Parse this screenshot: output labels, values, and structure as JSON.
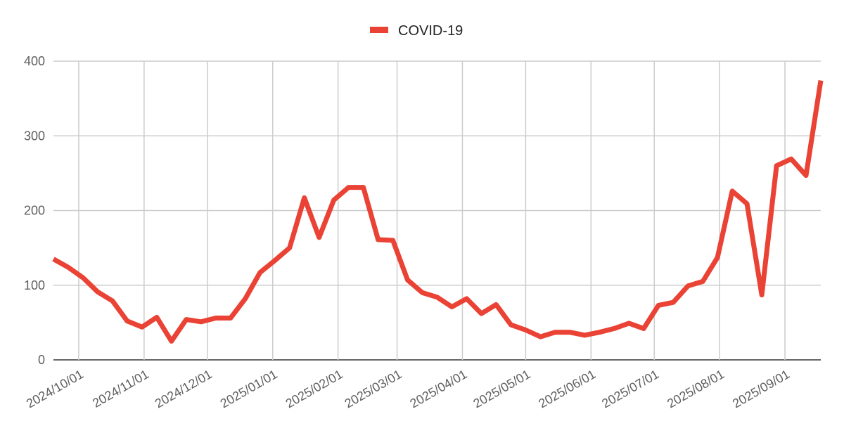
{
  "chart_data": {
    "type": "line",
    "x": [
      "2024/09/19",
      "2024/09/26",
      "2024/10/03",
      "2024/10/10",
      "2024/10/17",
      "2024/10/24",
      "2024/10/31",
      "2024/11/07",
      "2024/11/14",
      "2024/11/21",
      "2024/11/28",
      "2024/12/05",
      "2024/12/12",
      "2024/12/19",
      "2024/12/26",
      "2025/01/02",
      "2025/01/09",
      "2025/01/16",
      "2025/01/23",
      "2025/01/30",
      "2025/02/06",
      "2025/02/13",
      "2025/02/20",
      "2025/02/27",
      "2025/03/06",
      "2025/03/13",
      "2025/03/20",
      "2025/03/27",
      "2025/04/03",
      "2025/04/10",
      "2025/04/17",
      "2025/04/24",
      "2025/05/01",
      "2025/05/08",
      "2025/05/15",
      "2025/05/22",
      "2025/05/29",
      "2025/06/05",
      "2025/06/12",
      "2025/06/19",
      "2025/06/26",
      "2025/07/03",
      "2025/07/10",
      "2025/07/17",
      "2025/07/24",
      "2025/07/31",
      "2025/08/07",
      "2025/08/14",
      "2025/08/21",
      "2025/08/28",
      "2025/09/04",
      "2025/09/11",
      "2025/09/18"
    ],
    "series": [
      {
        "name": "COVID-19",
        "color": "#ea4335",
        "values": [
          135,
          124,
          110,
          91,
          79,
          52,
          44,
          57,
          25,
          54,
          51,
          56,
          56,
          82,
          117,
          133,
          150,
          217,
          164,
          214,
          231,
          231,
          161,
          160,
          107,
          90,
          84,
          71,
          82,
          62,
          74,
          47,
          40,
          31,
          37,
          37,
          33,
          37,
          42,
          49,
          42,
          73,
          77,
          99,
          105,
          137,
          226,
          209,
          87,
          260,
          269,
          247,
          374
        ]
      }
    ],
    "xlim": [
      "2024/09/19",
      "2025/09/18"
    ],
    "xticks": [
      "2024/10/01",
      "2024/11/01",
      "2024/12/01",
      "2025/01/01",
      "2025/02/01",
      "2025/03/01",
      "2025/04/01",
      "2025/05/01",
      "2025/06/01",
      "2025/07/01",
      "2025/08/01",
      "2025/09/01"
    ],
    "ylim": [
      0,
      400
    ],
    "yticks": [
      0,
      100,
      200,
      300,
      400
    ],
    "grid": true,
    "legend": "top"
  }
}
